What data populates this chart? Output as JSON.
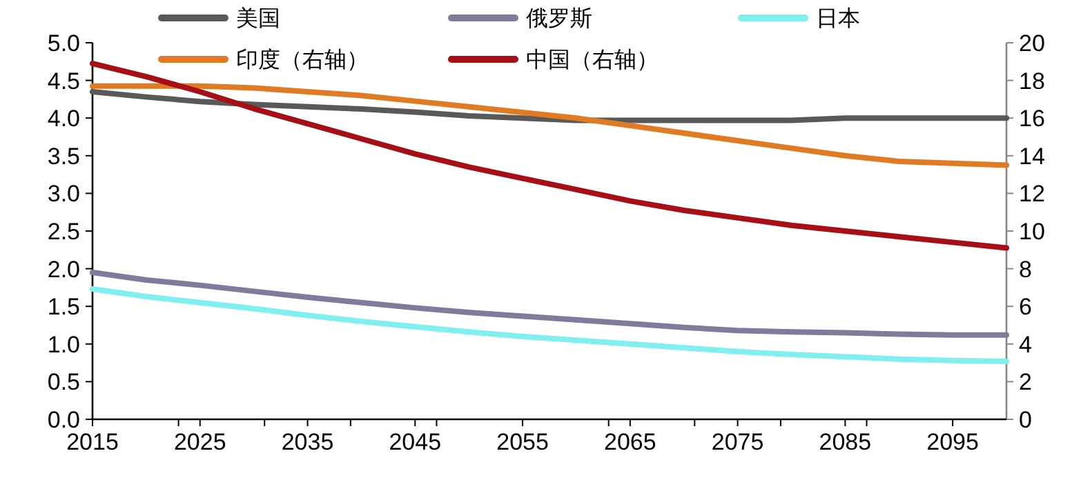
{
  "chart_data": {
    "type": "line",
    "x": [
      2015,
      2020,
      2025,
      2030,
      2035,
      2040,
      2045,
      2050,
      2055,
      2060,
      2065,
      2070,
      2075,
      2080,
      2085,
      2090,
      2095,
      2100
    ],
    "xlim": [
      2015,
      2100
    ],
    "xticks": [
      2015,
      {
        "value": 2023,
        "label": null
      },
      2025,
      {
        "value": 2031,
        "label": null
      },
      2035,
      {
        "value": 2039,
        "label": null
      },
      2045,
      {
        "value": 2047,
        "label": null
      },
      2055,
      {
        "value": 2063,
        "label": null
      },
      2065,
      {
        "value": 2071,
        "label": null
      },
      2075,
      {
        "value": 2079,
        "label": null
      },
      2085,
      {
        "value": 2087,
        "label": null
      },
      2095
    ],
    "ylim": [
      0,
      5
    ],
    "yticks": [
      {
        "value": 0,
        "label": "0.0"
      },
      {
        "value": 0.5,
        "label": "0.5"
      },
      {
        "value": 1,
        "label": "1.0"
      },
      {
        "value": 1.5,
        "label": "1.5"
      },
      {
        "value": 2,
        "label": "2.0"
      },
      {
        "value": 2.5,
        "label": "2.5"
      },
      {
        "value": 3,
        "label": "3.0"
      },
      {
        "value": 3.5,
        "label": "3.5"
      },
      {
        "value": 4,
        "label": "4.0"
      },
      {
        "value": 4.5,
        "label": "4.5"
      },
      {
        "value": 5,
        "label": "5.0"
      }
    ],
    "y2lim": [
      0,
      20
    ],
    "y2ticks": [
      0,
      2,
      4,
      6,
      8,
      10,
      12,
      14,
      16,
      18,
      20
    ],
    "legend": "top",
    "grid": false,
    "series": [
      {
        "name": "美国",
        "color": "#595959",
        "values": [
          4.35,
          4.28,
          4.22,
          4.18,
          4.15,
          4.12,
          4.08,
          4.03,
          4.0,
          3.97,
          3.97,
          3.97,
          3.97,
          3.97,
          4.0,
          4.0,
          4.0,
          4.0
        ]
      },
      {
        "name": "俄罗斯",
        "color": "#7f7b9c",
        "values": [
          1.95,
          1.85,
          1.78,
          1.7,
          1.62,
          1.55,
          1.48,
          1.42,
          1.37,
          1.32,
          1.27,
          1.22,
          1.18,
          1.16,
          1.15,
          1.13,
          1.12,
          1.12
        ]
      },
      {
        "name": "日本",
        "color": "#7fefef",
        "values": [
          1.73,
          1.63,
          1.55,
          1.47,
          1.38,
          1.3,
          1.23,
          1.16,
          1.1,
          1.05,
          1.0,
          0.95,
          0.9,
          0.86,
          0.83,
          0.8,
          0.78,
          0.77
        ]
      },
      {
        "name": "印度（右轴）",
        "color": "#e07b24",
        "axis": "y2",
        "values": [
          17.7,
          17.7,
          17.7,
          17.6,
          17.4,
          17.2,
          16.9,
          16.6,
          16.3,
          16.0,
          15.6,
          15.2,
          14.8,
          14.4,
          14.0,
          13.7,
          13.6,
          13.5
        ]
      },
      {
        "name": "中国（右轴）",
        "color": "#a50f15",
        "axis": "y2",
        "values": [
          18.9,
          18.2,
          17.4,
          16.5,
          15.7,
          14.9,
          14.1,
          13.4,
          12.8,
          12.2,
          11.6,
          11.1,
          10.7,
          10.3,
          10.0,
          9.7,
          9.4,
          9.1
        ]
      }
    ]
  }
}
